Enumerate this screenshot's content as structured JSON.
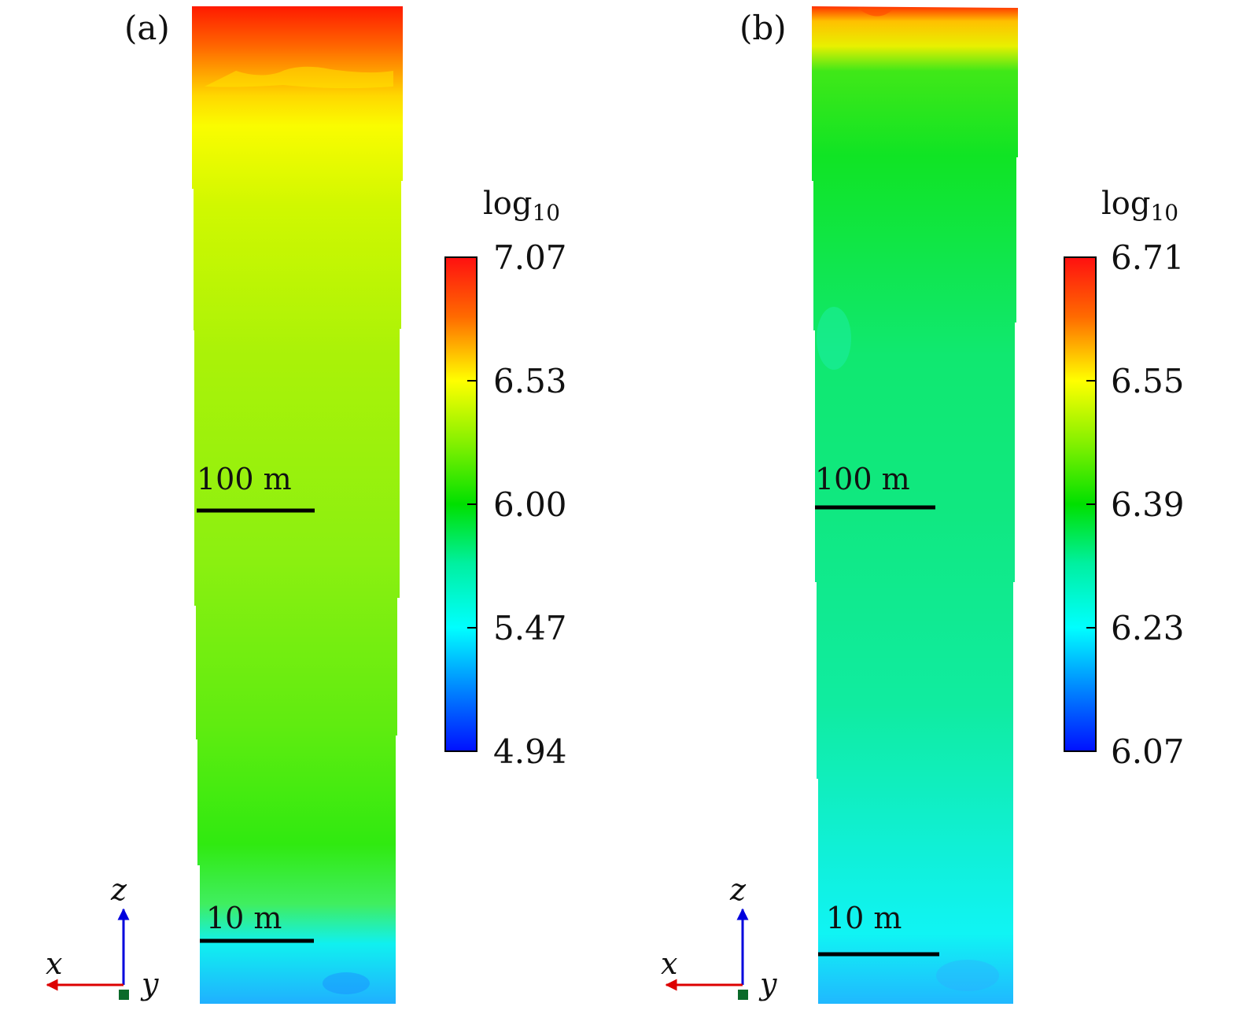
{
  "panels": [
    {
      "label": "(a)",
      "colorbar": {
        "title_main": "log",
        "title_sub": "10",
        "ticks": [
          "7.07",
          "6.53",
          "6.00",
          "5.47",
          "4.94"
        ]
      },
      "scale_labels": [
        "100 m",
        "10 m"
      ],
      "axes": {
        "z": "z",
        "x": "x",
        "y": "y"
      },
      "colors": {
        "top": "#ff2000",
        "upper": "#ffff00",
        "middle": "#9cf010",
        "lower": "#22ee10",
        "bottom": "#10f0f0"
      }
    },
    {
      "label": "(b)",
      "colorbar": {
        "title_main": "log",
        "title_sub": "10",
        "ticks": [
          "6.71",
          "6.55",
          "6.39",
          "6.23",
          "6.07"
        ]
      },
      "scale_labels": [
        "100 m",
        "10 m"
      ],
      "axes": {
        "z": "z",
        "x": "x",
        "y": "y"
      },
      "colors": {
        "top": "#ff2000",
        "upper": "#ffee00",
        "middle": "#10e830",
        "lower": "#10f0c0",
        "bottom": "#10f0f0"
      }
    }
  ]
}
